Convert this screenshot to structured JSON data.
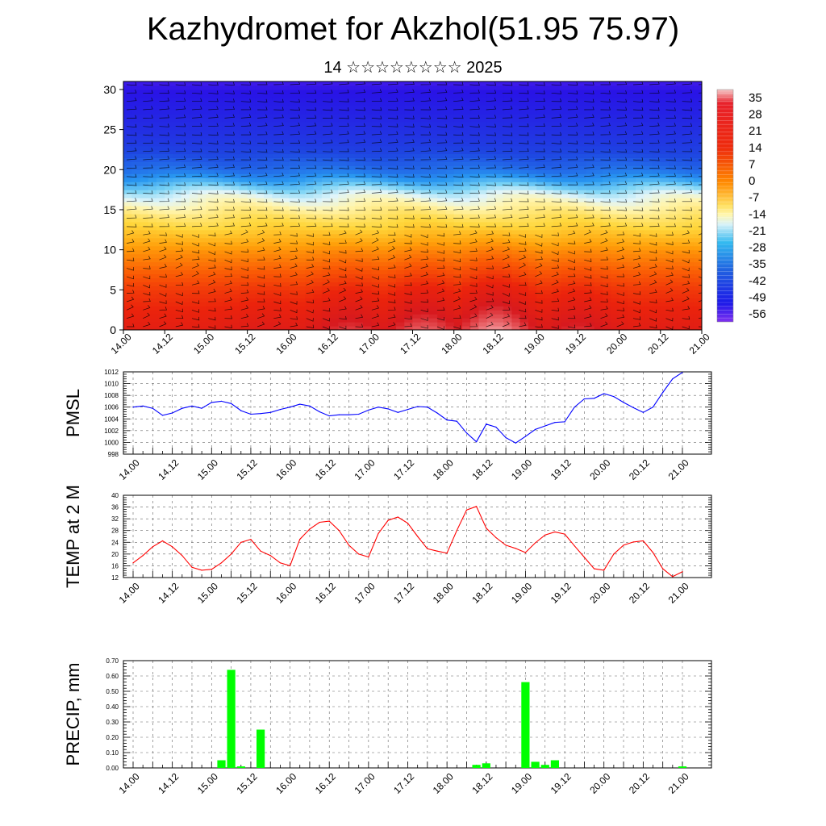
{
  "title": "Kazhydromet for Akzhol(51.95 75.97)",
  "subtitle": "14 ☆☆☆☆☆☆☆☆ 2025",
  "time_labels": [
    "14.00",
    "14.12",
    "15.00",
    "15.12",
    "16.00",
    "16.12",
    "17.00",
    "17.12",
    "18.00",
    "18.12",
    "19.00",
    "19.12",
    "20.00",
    "20.12",
    "21.00"
  ],
  "chart_data": [
    {
      "type": "heatmap",
      "title": "",
      "xlabel": "",
      "ylabel": "",
      "ylim": [
        0,
        31
      ],
      "yticks": [
        0,
        5,
        10,
        15,
        20,
        25,
        30
      ],
      "colorbar_labels": [
        "35",
        "28",
        "21",
        "14",
        "7",
        "0",
        "-7",
        "-14",
        "-21",
        "-28",
        "-35",
        "-42",
        "-49",
        "-56"
      ],
      "colorbar_range": [
        -63,
        42
      ],
      "overlay": "wind barbs",
      "temperature_profile": [
        {
          "height": 0,
          "value": 24
        },
        {
          "height": 5,
          "value": 18
        },
        {
          "height": 10,
          "value": 8
        },
        {
          "height": 14,
          "value": -3
        },
        {
          "height": 17,
          "value": -15
        },
        {
          "height": 20,
          "value": -35
        },
        {
          "height": 23,
          "value": -45
        },
        {
          "height": 27,
          "value": -52
        },
        {
          "height": 31,
          "value": -58
        }
      ],
      "surface_warm_peaks": [
        {
          "x": 1.5,
          "value": 24
        },
        {
          "x": 3.5,
          "value": 26
        },
        {
          "x": 5.5,
          "value": 31
        },
        {
          "x": 7.3,
          "value": 34
        },
        {
          "x": 9.0,
          "value": 38
        },
        {
          "x": 11.0,
          "value": 30
        },
        {
          "x": 13.2,
          "value": 25
        }
      ]
    },
    {
      "type": "line",
      "ylabel": "PMSL",
      "ylim": [
        998,
        1012
      ],
      "yticks": [
        998,
        1000,
        1002,
        1004,
        1006,
        1008,
        1010,
        1012
      ],
      "color": "#0000ff",
      "x": [
        0,
        0.25,
        0.5,
        0.75,
        1,
        1.25,
        1.5,
        1.75,
        2,
        2.25,
        2.5,
        2.75,
        3,
        3.25,
        3.5,
        3.75,
        4,
        4.25,
        4.5,
        4.75,
        5,
        5.25,
        5.5,
        5.75,
        6,
        6.25,
        6.5,
        6.75,
        7,
        7.25,
        7.5,
        7.75,
        8,
        8.25,
        8.5,
        8.75,
        9,
        9.25,
        9.5,
        9.75,
        10,
        10.25,
        10.5,
        10.75,
        11,
        11.25,
        11.5,
        11.75,
        12,
        12.25,
        12.5,
        12.75,
        13,
        13.25,
        13.5,
        13.75,
        14
      ],
      "values": [
        1006,
        1006.2,
        1005.8,
        1004.6,
        1005,
        1005.8,
        1006.2,
        1005.8,
        1006.8,
        1007,
        1006.6,
        1005.4,
        1004.8,
        1004.9,
        1005.1,
        1005.6,
        1006,
        1006.5,
        1006.2,
        1005.2,
        1004.5,
        1004.7,
        1004.7,
        1004.8,
        1005.5,
        1006,
        1005.7,
        1005.1,
        1005.6,
        1006.1,
        1006,
        1005,
        1003.8,
        1003.6,
        1001.6,
        1000.1,
        1003.1,
        1002.6,
        1000.8,
        999.9,
        1001,
        1002.2,
        1002.8,
        1003.4,
        1003.5,
        1006,
        1007.4,
        1007.5,
        1008.3,
        1007.8,
        1006.8,
        1005.9,
        1005.1,
        1006,
        1008.5,
        1010.8,
        1011.9
      ]
    },
    {
      "type": "line",
      "ylabel": "TEMP at 2 M",
      "ylim": [
        12,
        40
      ],
      "yticks": [
        12,
        16,
        20,
        24,
        28,
        32,
        36,
        40
      ],
      "color": "#ff0000",
      "x": [
        0,
        0.25,
        0.5,
        0.75,
        1,
        1.25,
        1.5,
        1.75,
        2,
        2.25,
        2.5,
        2.75,
        3,
        3.25,
        3.5,
        3.75,
        4,
        4.25,
        4.5,
        4.75,
        5,
        5.25,
        5.5,
        5.75,
        6,
        6.25,
        6.5,
        6.75,
        7,
        7.25,
        7.5,
        7.75,
        8,
        8.25,
        8.5,
        8.75,
        9,
        9.25,
        9.5,
        9.75,
        10,
        10.25,
        10.5,
        10.75,
        11,
        11.25,
        11.5,
        11.75,
        12,
        12.25,
        12.5,
        12.75,
        13,
        13.25,
        13.5,
        13.75,
        14
      ],
      "values": [
        17,
        19.5,
        22.5,
        24.5,
        22.5,
        19.5,
        15.5,
        14.5,
        14.8,
        17,
        20,
        24,
        25,
        21,
        19.5,
        17,
        16,
        25,
        28.5,
        30.8,
        31.2,
        28,
        23,
        20,
        19,
        27,
        31.5,
        32.6,
        30.5,
        26,
        21.8,
        21,
        20.3,
        28,
        35,
        36.2,
        28.8,
        25.6,
        23,
        21.9,
        20.5,
        23.8,
        26.5,
        27.5,
        26.8,
        22.8,
        18.9,
        15,
        14.5,
        20,
        23,
        24.1,
        24.5,
        20.5,
        15,
        12.3,
        14
      ]
    },
    {
      "type": "bar",
      "ylabel": "PRECIP, mm",
      "ylim": [
        0,
        0.7
      ],
      "yticks": [
        "0.00",
        "0.10",
        "0.20",
        "0.30",
        "0.40",
        "0.50",
        "0.60",
        "0.70"
      ],
      "color": "#00ff00",
      "bars": [
        {
          "x": 2.25,
          "value": 0.05
        },
        {
          "x": 2.5,
          "value": 0.64
        },
        {
          "x": 2.75,
          "value": 0.01
        },
        {
          "x": 3.25,
          "value": 0.25
        },
        {
          "x": 8.75,
          "value": 0.02
        },
        {
          "x": 9.0,
          "value": 0.03
        },
        {
          "x": 10.0,
          "value": 0.56
        },
        {
          "x": 10.25,
          "value": 0.04
        },
        {
          "x": 10.5,
          "value": 0.02
        },
        {
          "x": 10.75,
          "value": 0.05
        },
        {
          "x": 14.0,
          "value": 0.01
        }
      ]
    }
  ]
}
